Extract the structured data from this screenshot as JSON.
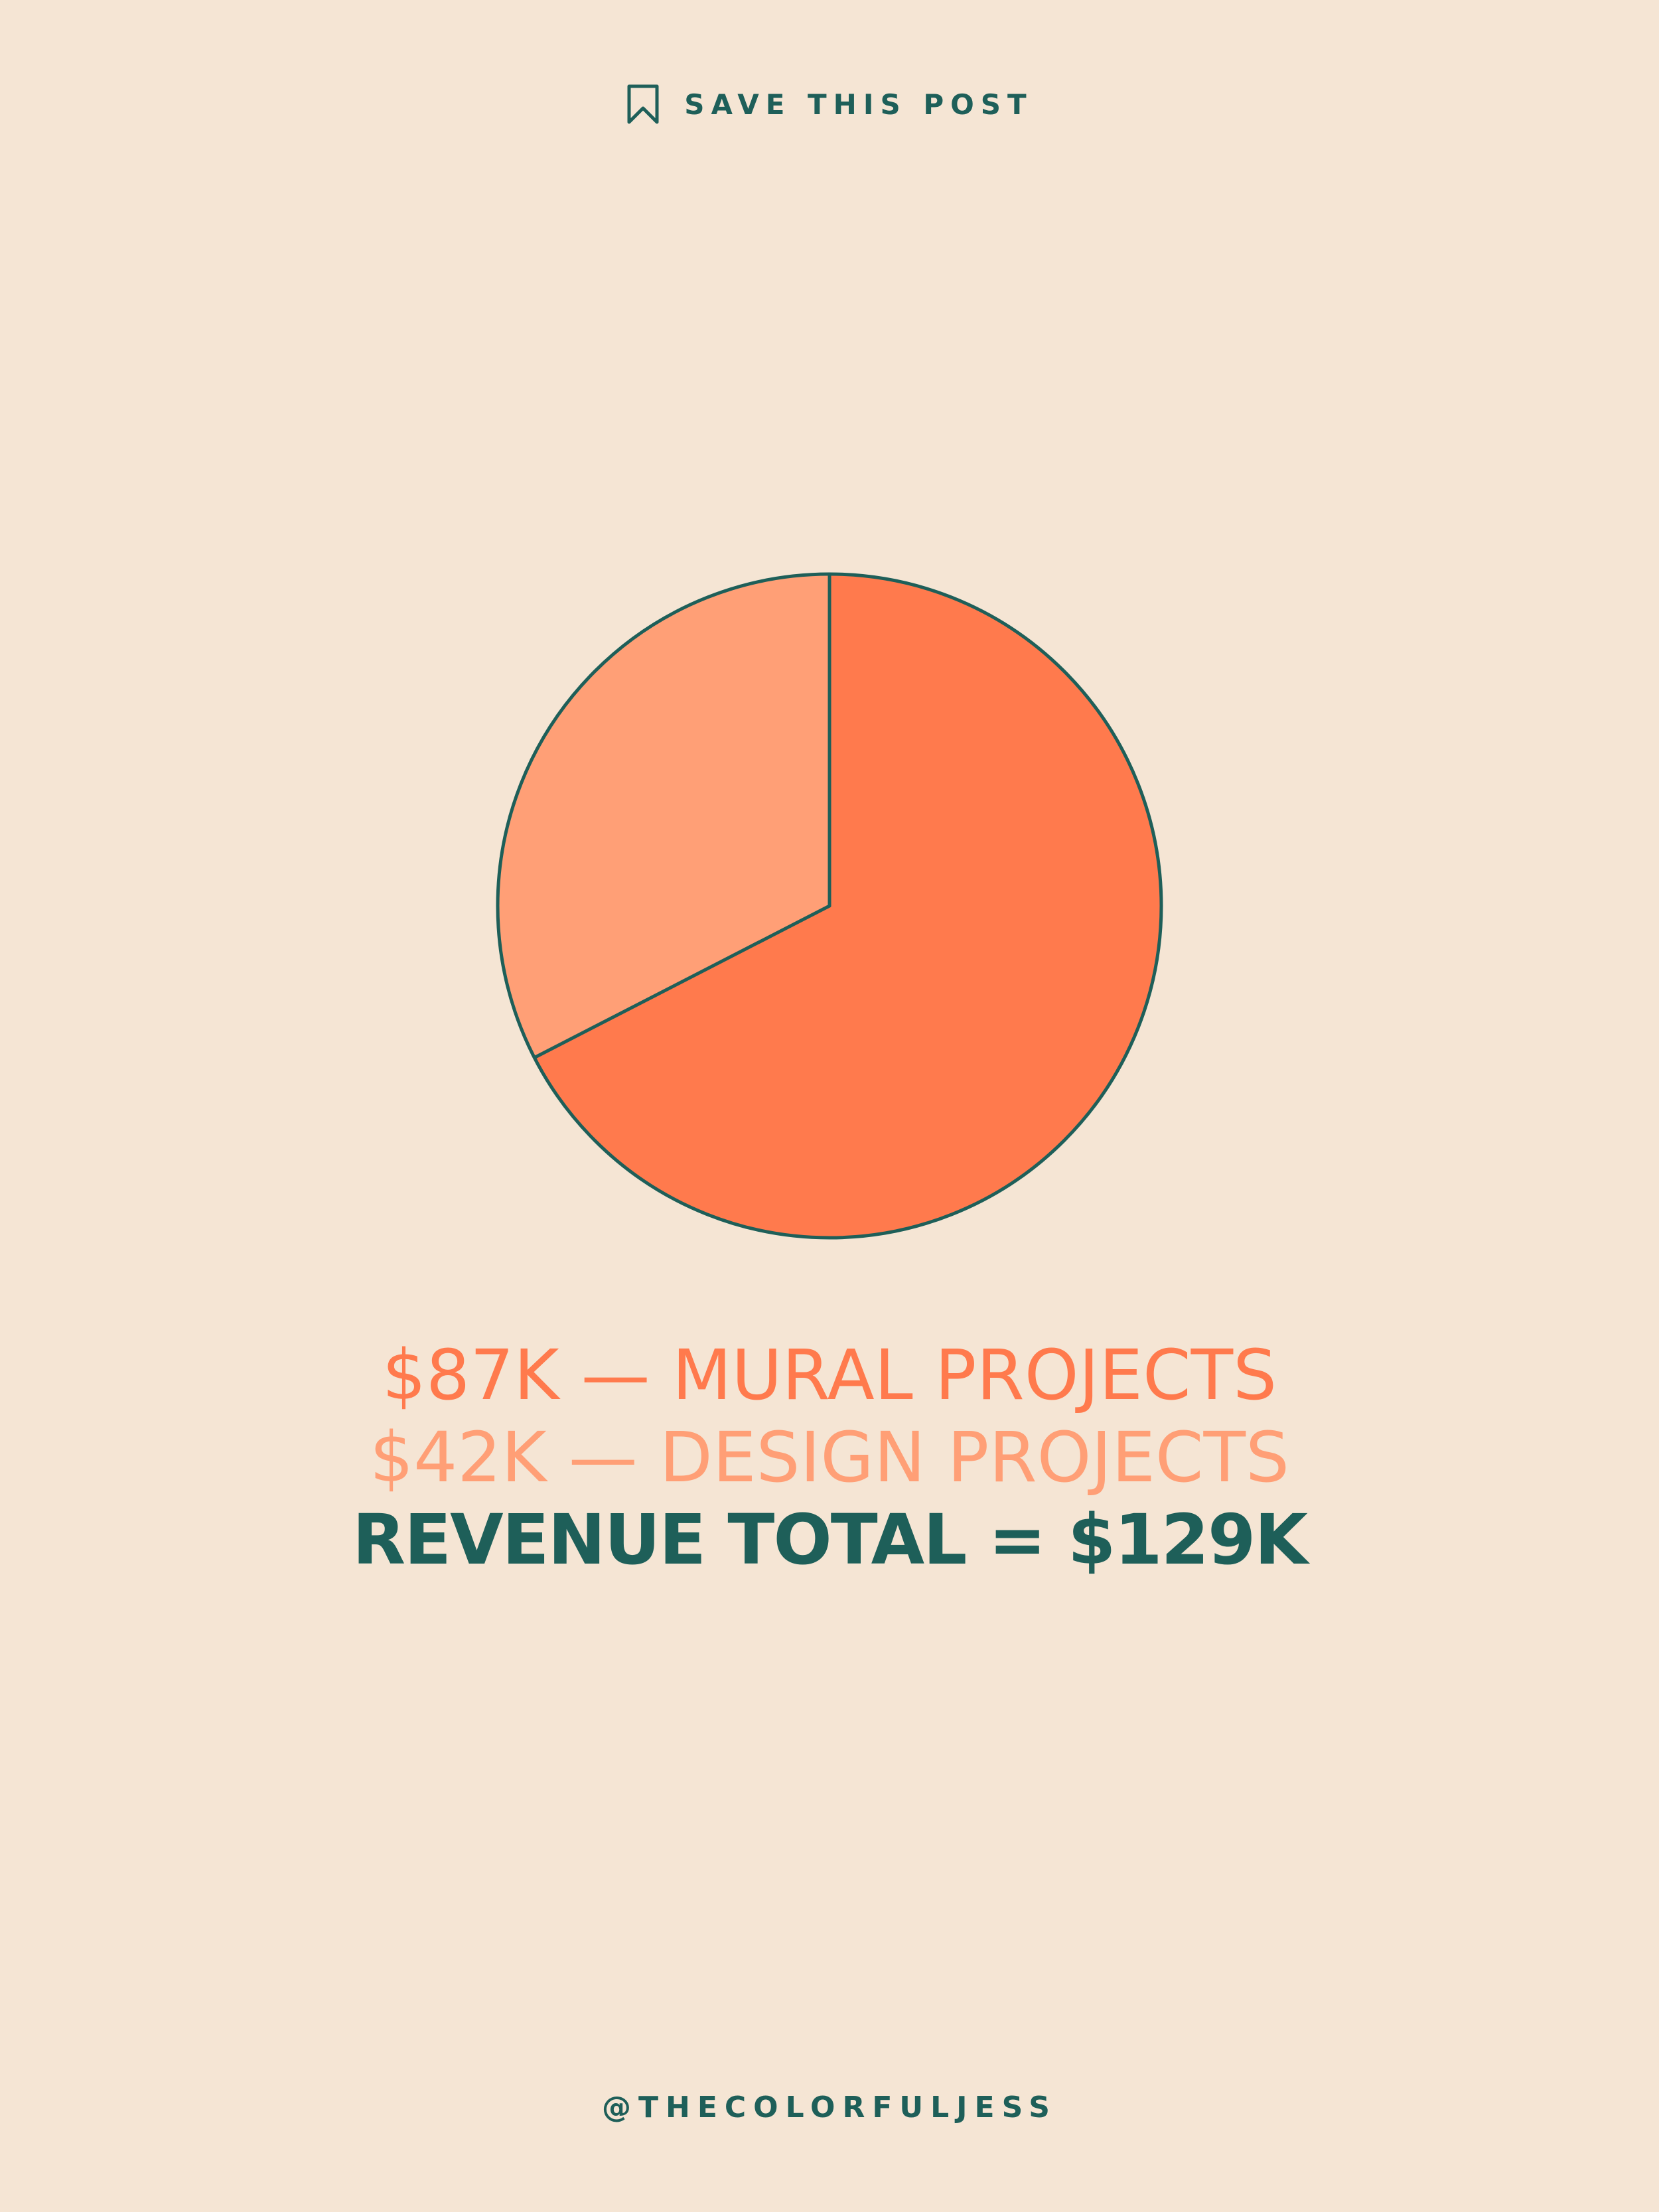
{
  "header": {
    "save_label": "SAVE THIS POST",
    "save_icon": "bookmark-icon"
  },
  "chart_data": {
    "type": "pie",
    "unit": "$K",
    "slices": [
      {
        "label": "MURAL PROJECTS",
        "value": 87,
        "color": "#ff7a4d"
      },
      {
        "label": "DESIGN PROJECTS",
        "value": 42,
        "color": "#ff9f76"
      }
    ],
    "outline_color": "#1e5f59",
    "legend": [
      "$87K — MURAL PROJECTS",
      "$42K — DESIGN PROJECTS"
    ],
    "total_text": "REVENUE TOTAL = $129K"
  },
  "footer": {
    "handle": "@THECOLORFULJESS"
  },
  "colors": {
    "background": "#f5e5d4",
    "accent_dark": "#1e5f59",
    "mural": "#ff7a4d",
    "design": "#ff9f76"
  }
}
